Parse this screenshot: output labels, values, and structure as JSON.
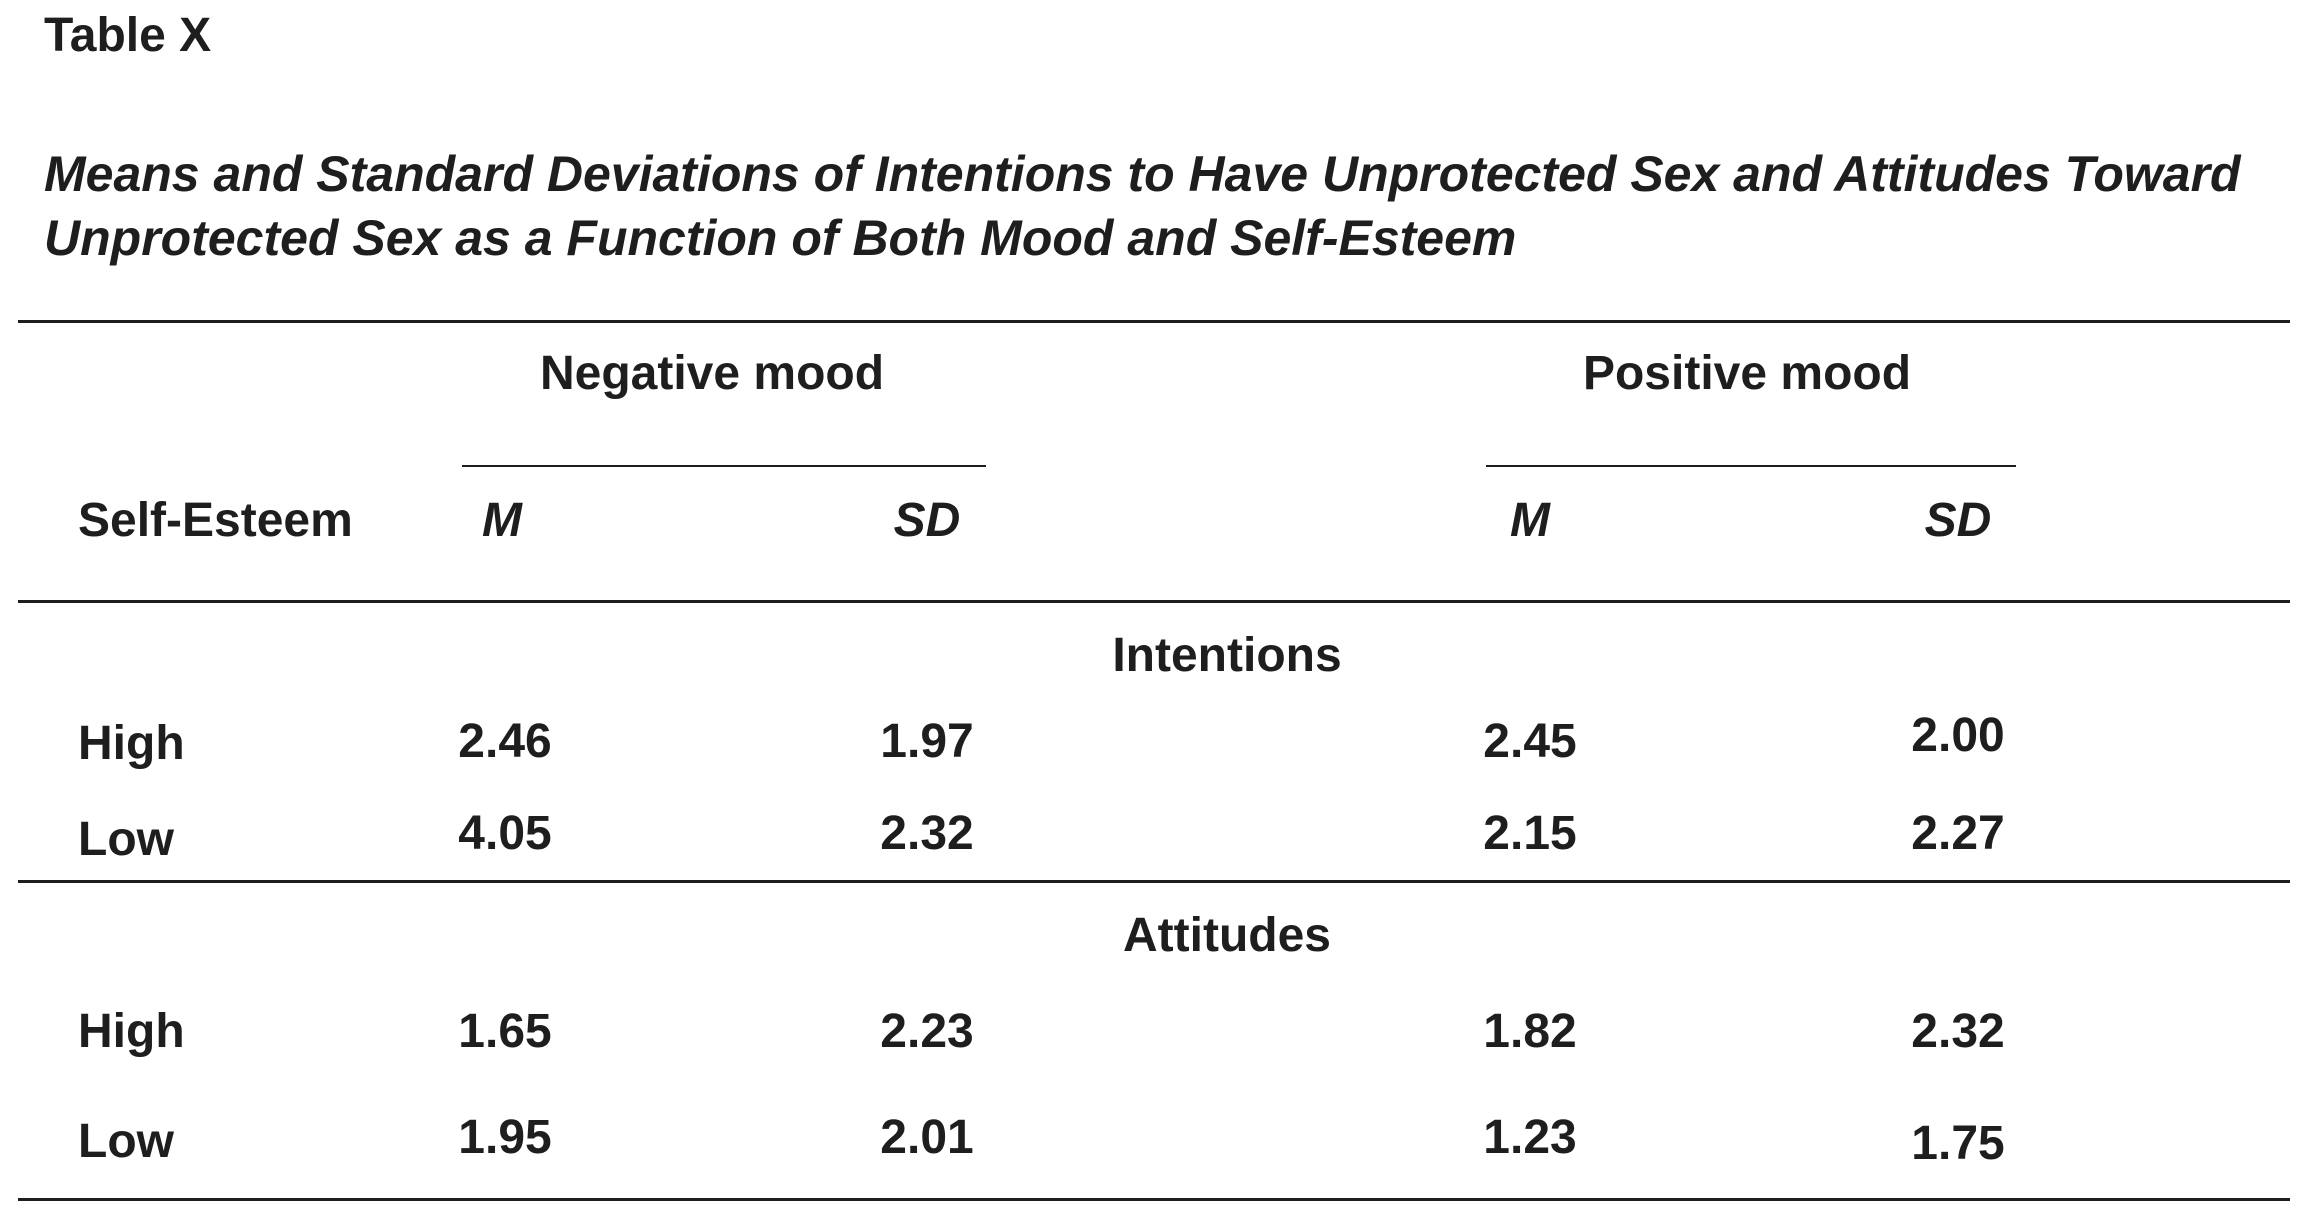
{
  "table_label": "Table X",
  "caption": "Means and Standard Deviations of Intentions to Have Unprotected Sex and Attitudes Toward Unprotected Sex as a Function of Both Mood and Self-Esteem",
  "header": {
    "groups": [
      "Negative mood",
      "Positive mood"
    ],
    "row_label": "Self-Esteem",
    "columns": [
      "M",
      "SD",
      "M",
      "SD"
    ]
  },
  "sections": [
    {
      "title": "Intentions",
      "rows": [
        {
          "label": "High",
          "values": [
            "2.46",
            "1.97",
            "2.45",
            "2.00"
          ]
        },
        {
          "label": "Low",
          "values": [
            "4.05",
            "2.32",
            "2.15",
            "2.27"
          ]
        }
      ]
    },
    {
      "title": "Attitudes",
      "rows": [
        {
          "label": "High",
          "values": [
            "1.65",
            "2.23",
            "1.82",
            "2.32"
          ]
        },
        {
          "label": "Low",
          "values": [
            "1.95",
            "2.01",
            "1.23",
            "1.75"
          ]
        }
      ]
    }
  ]
}
